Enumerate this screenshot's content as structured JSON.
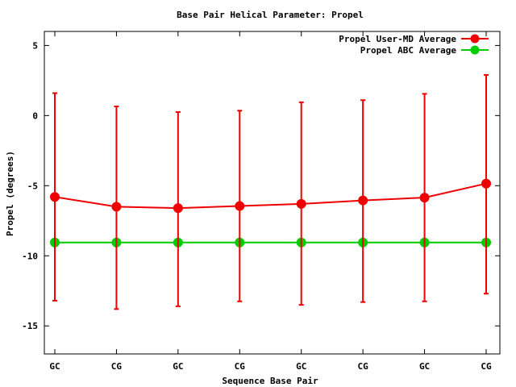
{
  "chart_data": {
    "type": "line",
    "title": "Base Pair Helical Parameter: Propel",
    "xlabel": "Sequence Base Pair",
    "ylabel": "Propel (degrees)",
    "categories": [
      "GC",
      "CG",
      "GC",
      "CG",
      "GC",
      "CG",
      "GC",
      "CG"
    ],
    "ylim": [
      -17,
      6
    ],
    "yticks": [
      5,
      0,
      -5,
      -10,
      -15
    ],
    "grid": false,
    "legend_position": "top-right",
    "series": [
      {
        "name": "Propel User-MD Average",
        "color": "#ee0000",
        "values": [
          -5.8,
          -6.5,
          -6.6,
          -6.45,
          -6.3,
          -6.05,
          -5.85,
          -4.85
        ],
        "error_low": [
          -13.2,
          -13.8,
          -13.6,
          -13.25,
          -13.5,
          -13.3,
          -13.25,
          -12.7
        ],
        "error_high": [
          1.6,
          0.65,
          0.25,
          0.35,
          0.95,
          1.1,
          1.55,
          2.9
        ]
      },
      {
        "name": "Propel ABC Average",
        "color": "#00cc00",
        "values": [
          -9.05,
          -9.05,
          -9.05,
          -9.05,
          -9.05,
          -9.05,
          -9.05,
          -9.05
        ]
      }
    ]
  }
}
